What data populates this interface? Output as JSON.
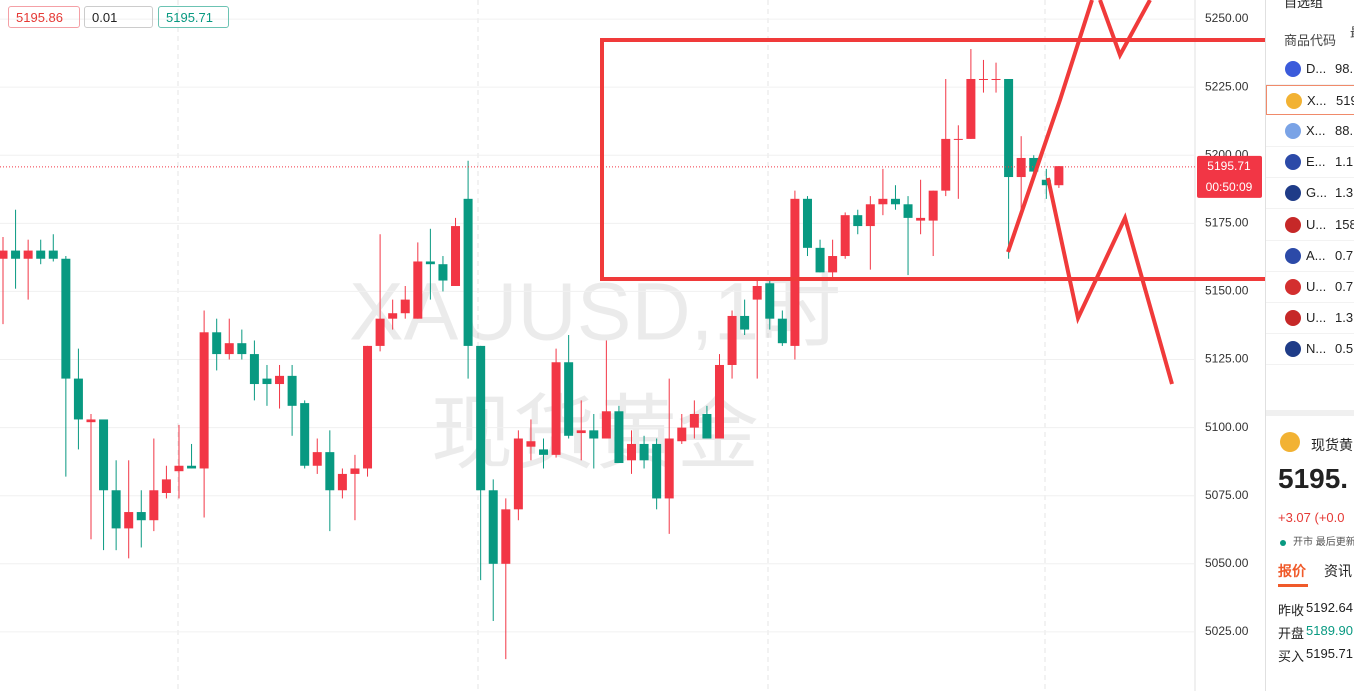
{
  "toolbar": {
    "sell": "5195.86",
    "lot": "0.01",
    "buy": "5195.71"
  },
  "chart_data": {
    "type": "candlestick",
    "watermark": "XAUUSD,1时",
    "watermark_name": "现货黄金",
    "up_color": "#f23645",
    "down_color": "#089981",
    "open": [
      5162,
      5165,
      5162,
      5165,
      5165,
      5162,
      5118,
      5102,
      5103,
      5077,
      5063,
      5069,
      5066,
      5076,
      5084,
      5086,
      5085,
      5135,
      5127,
      5131,
      5127,
      5118,
      5116,
      5119,
      5109,
      5086,
      5091,
      5077,
      5083,
      5085,
      5130,
      5140,
      5142,
      5140,
      5161,
      5160,
      5152,
      5184,
      5130,
      5077,
      5050,
      5070,
      5093,
      5092,
      5090,
      5124,
      5098,
      5099,
      5096,
      5106,
      5088,
      5094,
      5094,
      5074,
      5095,
      5100,
      5105,
      5096,
      5123,
      5141,
      5147,
      5153,
      5140,
      5130,
      5184,
      5166,
      5157,
      5163,
      5178,
      5174,
      5182,
      5184,
      5182,
      5176,
      5176,
      5187,
      5206,
      5206,
      5228,
      5228,
      5228,
      5192,
      5199,
      5191,
      5189
    ],
    "high": [
      5170,
      5180,
      5169,
      5169,
      5171,
      5163,
      5129,
      5105,
      5103,
      5088,
      5088,
      5077,
      5096,
      5086,
      5101,
      5094,
      5143,
      5140,
      5140,
      5136,
      5132,
      5123,
      5123,
      5123,
      5110,
      5096,
      5099,
      5085,
      5090,
      5130,
      5171,
      5147,
      5152,
      5168,
      5173,
      5163,
      5177,
      5198,
      5130,
      5081,
      5074,
      5099,
      5103,
      5096,
      5129,
      5134,
      5110,
      5105,
      5132,
      5108,
      5099,
      5097,
      5096,
      5118,
      5105,
      5110,
      5108,
      5127,
      5143,
      5147,
      5154,
      5155,
      5143,
      5187,
      5185,
      5169,
      5169,
      5179,
      5180,
      5185,
      5195,
      5189,
      5185,
      5191,
      5187,
      5228,
      5211,
      5239,
      5235,
      5234,
      5228,
      5207,
      5200,
      5195,
      5196
    ],
    "low": [
      5138,
      5151,
      5147,
      5160,
      5161,
      5082,
      5092,
      5059,
      5055,
      5055,
      5052,
      5056,
      5062,
      5074,
      5074,
      5085,
      5067,
      5121,
      5125,
      5125,
      5110,
      5108,
      5107,
      5097,
      5085,
      5083,
      5062,
      5074,
      5066,
      5082,
      5128,
      5136,
      5140,
      5140,
      5147,
      5150,
      5152,
      5118,
      5044,
      5029,
      5015,
      5066,
      5088,
      5085,
      5089,
      5096,
      5088,
      5085,
      5096,
      5087,
      5083,
      5085,
      5070,
      5061,
      5094,
      5096,
      5096,
      5096,
      5118,
      5134,
      5118,
      5136,
      5130,
      5125,
      5163,
      5157,
      5154,
      5162,
      5171,
      5158,
      5178,
      5180,
      5156,
      5171,
      5163,
      5185,
      5184,
      5206,
      5223,
      5223,
      5162,
      5180,
      5191,
      5184,
      5188
    ],
    "close": [
      5165,
      5162,
      5165,
      5162,
      5162,
      5118,
      5103,
      5103,
      5077,
      5063,
      5069,
      5066,
      5077,
      5081,
      5086,
      5085,
      5135,
      5127,
      5131,
      5127,
      5116,
      5116,
      5119,
      5108,
      5086,
      5091,
      5077,
      5083,
      5085,
      5130,
      5140,
      5142,
      5147,
      5161,
      5160,
      5154,
      5174,
      5130,
      5077,
      5050,
      5070,
      5096,
      5095,
      5090,
      5124,
      5097,
      5099,
      5096,
      5106,
      5087,
      5094,
      5088,
      5074,
      5096,
      5100,
      5105,
      5096,
      5123,
      5141,
      5136,
      5152,
      5140,
      5131,
      5184,
      5166,
      5157,
      5163,
      5178,
      5174,
      5182,
      5184,
      5182,
      5177,
      5177,
      5187,
      5206,
      5206,
      5228,
      5228,
      5228,
      5192,
      5199,
      5194,
      5189,
      5196
    ],
    "ylim": [
      5003.3,
      5257
    ],
    "yticks": [
      {
        "value": 5025,
        "label": "5025.00"
      },
      {
        "value": 5050,
        "label": "5050.00"
      },
      {
        "value": 5075,
        "label": "5075.00"
      },
      {
        "value": 5100,
        "label": "5100.00"
      },
      {
        "value": 5125,
        "label": "5125.00"
      },
      {
        "value": 5150,
        "label": "5150.00"
      },
      {
        "value": 5175,
        "label": "5175.00"
      },
      {
        "value": 5200,
        "label": "5200.00"
      },
      {
        "value": 5225,
        "label": "5225.00"
      },
      {
        "value": 5250,
        "label": "5250.00"
      }
    ],
    "last_price": {
      "value": 5195.71,
      "label": "5195.71"
    },
    "countdown": "00:50:09",
    "grid": true
  },
  "watchlist": {
    "title": "自选组",
    "col_symbol": "商品代码",
    "col_price": "最",
    "rows": [
      {
        "symbol": "D...",
        "price": "98."
      },
      {
        "symbol": "X...",
        "price": "519"
      },
      {
        "symbol": "X...",
        "price": "88."
      },
      {
        "symbol": "E...",
        "price": "1.1"
      },
      {
        "symbol": "G...",
        "price": "1.3"
      },
      {
        "symbol": "U...",
        "price": "158"
      },
      {
        "symbol": "A...",
        "price": "0.7"
      },
      {
        "symbol": "U...",
        "price": "0.7"
      },
      {
        "symbol": "U...",
        "price": "1.3"
      },
      {
        "symbol": "N...",
        "price": "0.5"
      }
    ]
  },
  "detail": {
    "name": "现货黄",
    "price": "5195.",
    "change": "+3.07 (+0.0",
    "status": "开市 最后更新",
    "tabs": [
      "报价",
      "资讯"
    ],
    "stats": [
      {
        "label": "昨收",
        "value": "5192.64"
      },
      {
        "label": "开盘",
        "value": "5189.90"
      },
      {
        "label": "买入",
        "value": "5195.71"
      }
    ]
  }
}
